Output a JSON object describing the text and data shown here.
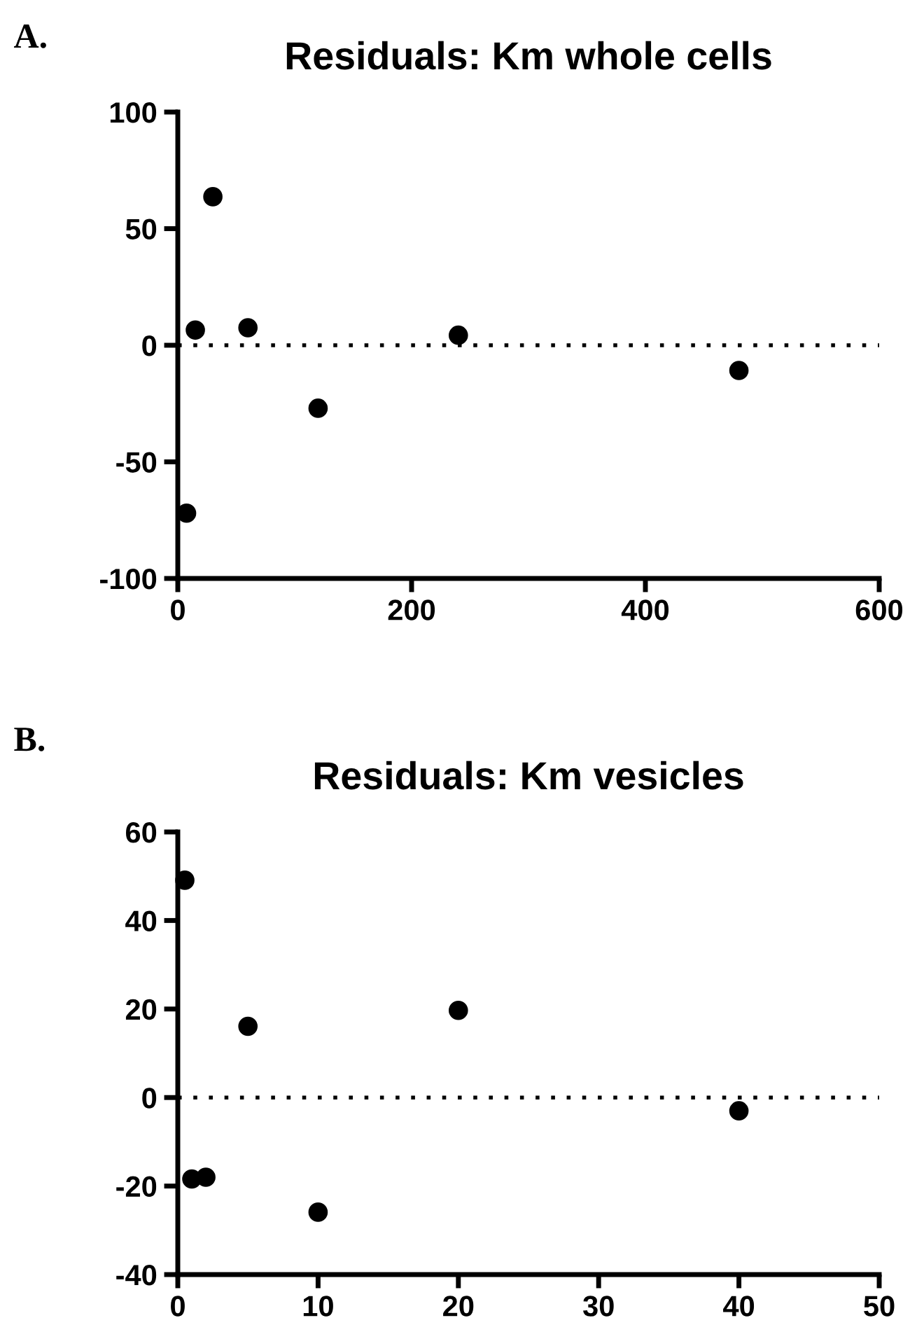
{
  "chart_data": [
    {
      "type": "scatter",
      "title": "Residuals: Km whole cells",
      "annotations": [
        "A."
      ],
      "x": [
        7.5,
        15,
        30,
        60,
        120,
        240,
        480
      ],
      "values": [
        -72,
        6.5,
        63.7,
        7.5,
        -27,
        4.3,
        -10.8
      ],
      "color": "#000000",
      "marker": "circle",
      "xlim": [
        0,
        600
      ],
      "xticks": [
        0,
        200,
        400,
        600
      ],
      "ylim": [
        -100,
        100
      ],
      "yticks": [
        -100,
        -50,
        0,
        50,
        100
      ],
      "grid": false,
      "ref_lines": [
        {
          "axis": "y",
          "value": 0,
          "color": "#000000",
          "line_style": "dotted"
        }
      ]
    },
    {
      "type": "scatter",
      "title": "Residuals: Km vesicles",
      "annotations": [
        "B."
      ],
      "x": [
        0.5,
        1,
        2,
        5,
        10,
        20,
        40
      ],
      "values": [
        49.1,
        -18.4,
        -18,
        16.1,
        -25.9,
        19.7,
        -3
      ],
      "color": "#000000",
      "marker": "circle",
      "xlim": [
        0,
        50
      ],
      "xticks": [
        0,
        10,
        20,
        30,
        40,
        50
      ],
      "ylim": [
        -40,
        60
      ],
      "yticks": [
        -40,
        -20,
        0,
        20,
        40,
        60
      ],
      "grid": false,
      "ref_lines": [
        {
          "axis": "y",
          "value": 0,
          "color": "#000000",
          "line_style": "dotted"
        }
      ]
    }
  ]
}
